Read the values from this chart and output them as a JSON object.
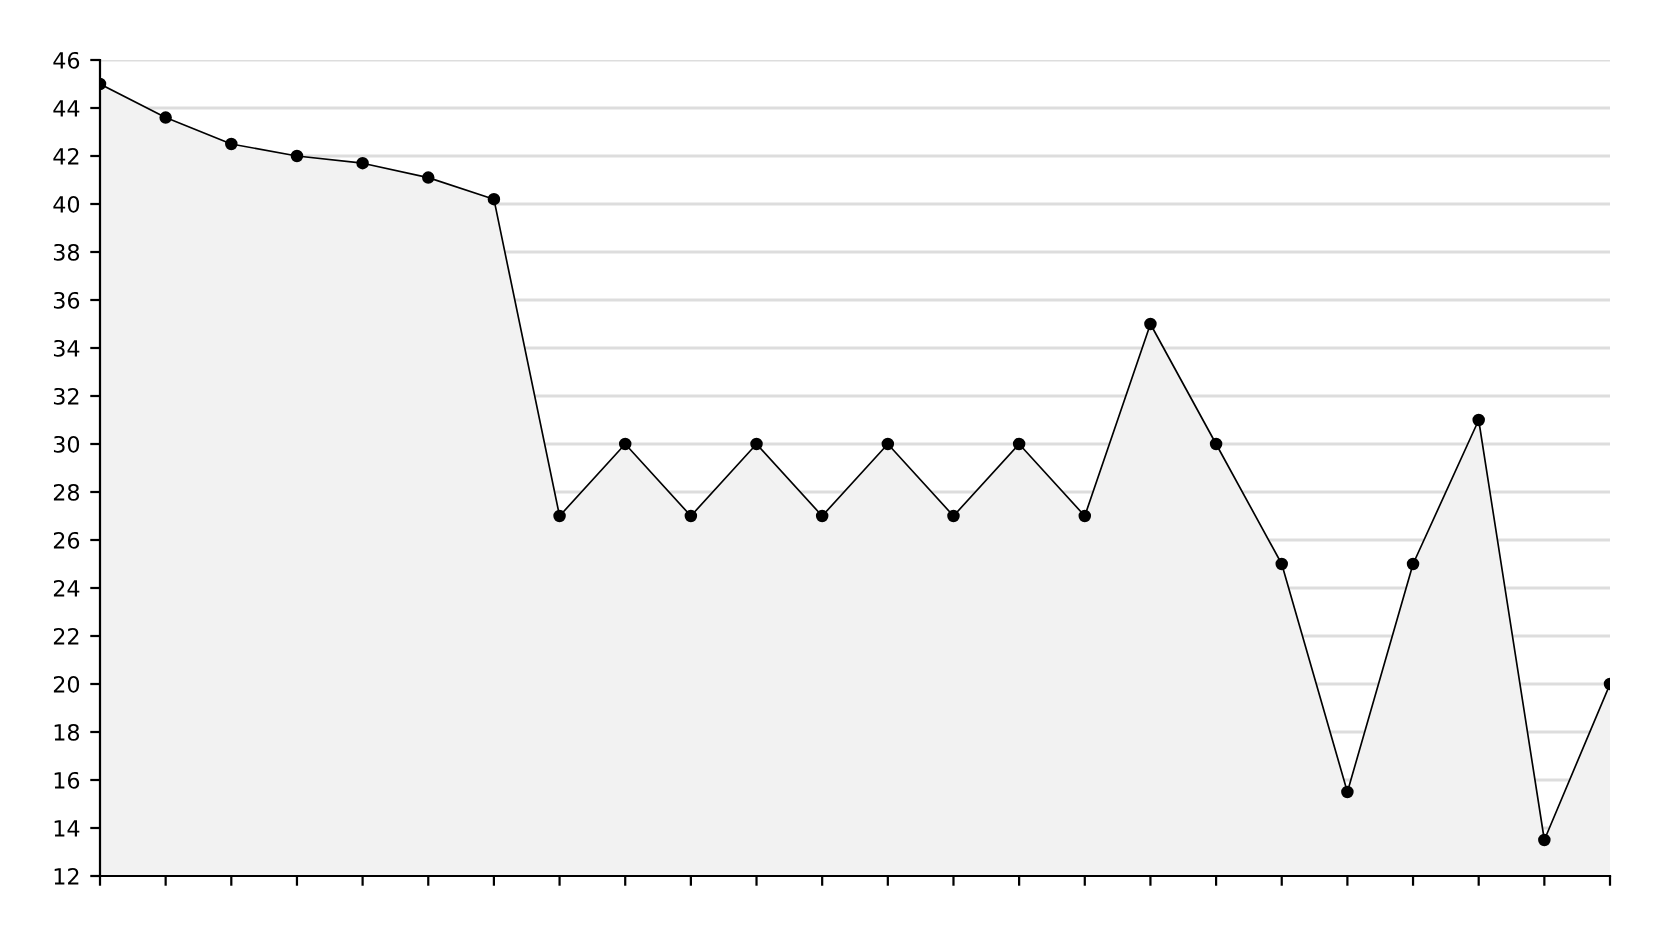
{
  "chart_data": {
    "type": "area",
    "categories": [
      null,
      null,
      null,
      null,
      null,
      null,
      null,
      null,
      null,
      null,
      null,
      null,
      null,
      null,
      null,
      null,
      null,
      null,
      null,
      null,
      null,
      null,
      null,
      null
    ],
    "series": [
      {
        "color": "#000000",
        "values": [
          45,
          43.6,
          42.5,
          42,
          41.7,
          41.1,
          40.2,
          27,
          30,
          27,
          30,
          27,
          30,
          27,
          30,
          27,
          35,
          30,
          25,
          15.5,
          25,
          31,
          13.5,
          20
        ]
      }
    ],
    "ylim": [
      12,
      46
    ],
    "yticks": [
      12,
      14,
      16,
      18,
      20,
      22,
      24,
      26,
      28,
      30,
      32,
      34,
      36,
      38,
      40,
      42,
      44,
      46
    ],
    "grid": "y",
    "marker": "circle",
    "line_style": "solid"
  }
}
